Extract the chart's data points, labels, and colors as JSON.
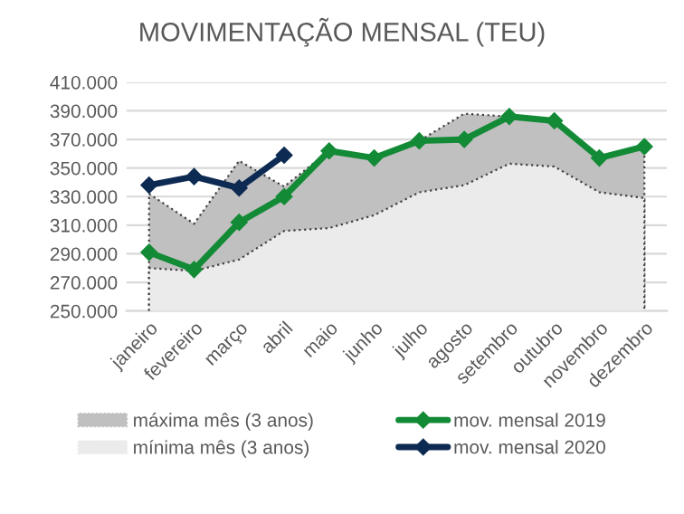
{
  "chart_data": {
    "type": "line",
    "title": "MOVIMENTAÇÃO MENSAL (TEU)",
    "categories": [
      "janeiro",
      "fevereiro",
      "março",
      "abril",
      "maio",
      "junho",
      "julho",
      "agosto",
      "setembro",
      "outubro",
      "novembro",
      "dezembro"
    ],
    "series": [
      {
        "name": "máxima mês (3 anos)",
        "type": "area",
        "color": "#c0c0c0",
        "line_style": "dotted",
        "values": [
          332000,
          311000,
          355000,
          337000,
          362000,
          357000,
          369000,
          388000,
          386000,
          383000,
          357000,
          365000
        ]
      },
      {
        "name": "mínima mês (3 anos)",
        "type": "area",
        "color": "#ebebeb",
        "line_style": "dotted",
        "values": [
          280000,
          278000,
          286000,
          306000,
          308000,
          317000,
          333000,
          338000,
          353000,
          351000,
          333000,
          329000
        ]
      },
      {
        "name": "mov. mensal 2019",
        "marker": "diamond",
        "color": "#138a36",
        "values": [
          291000,
          279000,
          312000,
          330000,
          362000,
          357000,
          369000,
          370000,
          386000,
          383000,
          357000,
          365000
        ]
      },
      {
        "name": "mov. mensal 2020",
        "marker": "diamond",
        "color": "#0d2b52",
        "values": [
          338000,
          344000,
          336000,
          359000,
          null,
          null,
          null,
          null,
          null,
          null,
          null,
          null
        ]
      }
    ],
    "ylim": [
      250000,
      410000
    ],
    "yticks": [
      {
        "value": 250000,
        "label": "250.000"
      },
      {
        "value": 270000,
        "label": "270.000"
      },
      {
        "value": 290000,
        "label": "290.000"
      },
      {
        "value": 310000,
        "label": "310.000"
      },
      {
        "value": 330000,
        "label": "330.000"
      },
      {
        "value": 350000,
        "label": "350.000"
      },
      {
        "value": 370000,
        "label": "370.000"
      },
      {
        "value": 390000,
        "label": "390.000"
      },
      {
        "value": 410000,
        "label": "410.000"
      }
    ],
    "grid": "y",
    "legend": "bottom"
  }
}
